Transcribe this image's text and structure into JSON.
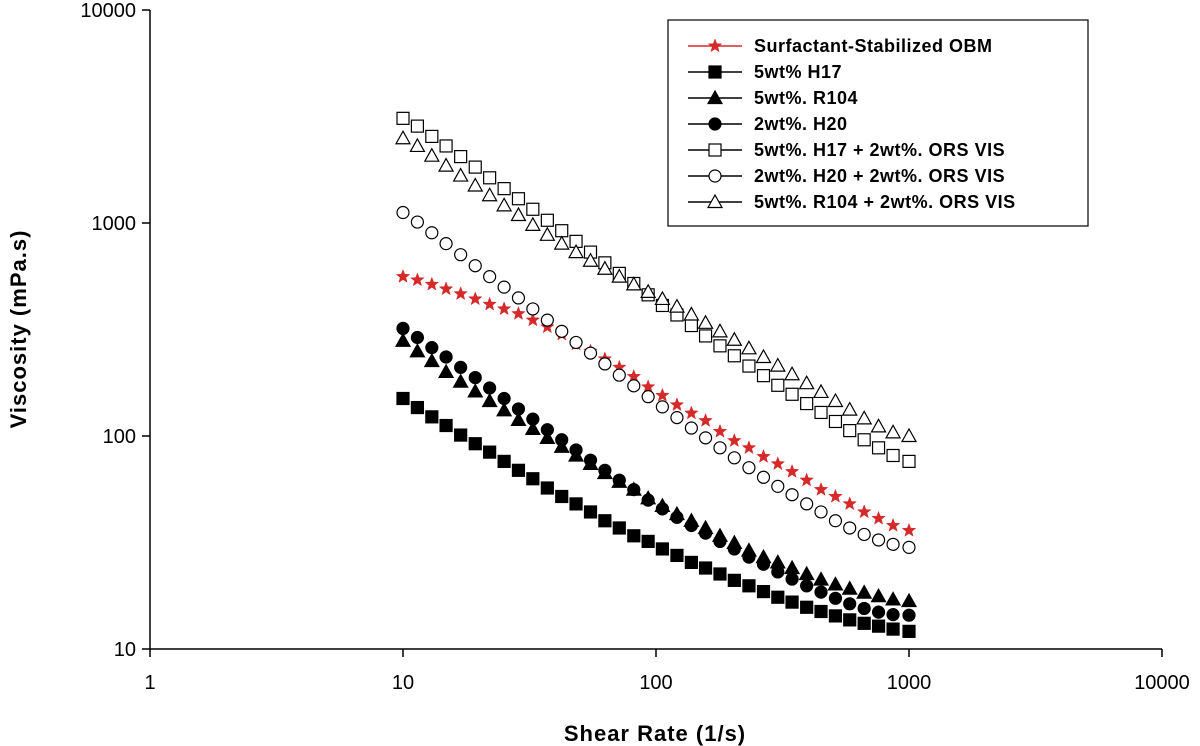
{
  "chart_data": {
    "type": "scatter",
    "xlabel": "Shear Rate (1/s)",
    "ylabel": "Viscosity (mPa.s)",
    "x_scale": "log",
    "y_scale": "log",
    "xlim": [
      1,
      10000
    ],
    "ylim": [
      10,
      10000
    ],
    "x_ticks": [
      1,
      10,
      100,
      1000,
      10000
    ],
    "y_ticks": [
      10,
      100,
      1000,
      10000
    ],
    "x_tick_labels": [
      "1",
      "10",
      "100",
      "1000",
      "10000"
    ],
    "y_tick_labels": [
      "10",
      "100",
      "1000",
      "10000"
    ],
    "grid": false,
    "legend_position": "top-right",
    "series": [
      {
        "name": "Surfactant-Stabilized OBM",
        "marker": "star",
        "color": "#d42a2a",
        "x": [
          10,
          11.4,
          13,
          14.8,
          16.9,
          19.3,
          22,
          25.1,
          28.6,
          32.6,
          37.2,
          42.4,
          48.3,
          55.1,
          62.8,
          71.6,
          81.7,
          93.1,
          106,
          121,
          138,
          157,
          179,
          204,
          233,
          266,
          303,
          345,
          394,
          449,
          512,
          583,
          665,
          758,
          865,
          1000
        ],
        "y": [
          560,
          540,
          515,
          490,
          465,
          440,
          415,
          395,
          375,
          350,
          325,
          300,
          270,
          250,
          230,
          210,
          190,
          170,
          155,
          140,
          128,
          118,
          105,
          95,
          88,
          80,
          74,
          68,
          62,
          56,
          52,
          48,
          44,
          41,
          38,
          36
        ]
      },
      {
        "name": "5wt% H17",
        "marker": "square-filled",
        "color": "#000000",
        "x": [
          10,
          11.4,
          13,
          14.8,
          16.9,
          19.3,
          22,
          25.1,
          28.6,
          32.6,
          37.2,
          42.4,
          48.3,
          55.1,
          62.8,
          71.6,
          81.7,
          93.1,
          106,
          121,
          138,
          157,
          179,
          204,
          233,
          266,
          303,
          345,
          394,
          449,
          512,
          583,
          665,
          758,
          865,
          1000
        ],
        "y": [
          150,
          136,
          123,
          112,
          101,
          92,
          84,
          76,
          69,
          63,
          57,
          52,
          48,
          44,
          40,
          37,
          34,
          32,
          29.5,
          27.5,
          25.5,
          24,
          22.5,
          21,
          19.8,
          18.6,
          17.5,
          16.6,
          15.7,
          15,
          14.3,
          13.7,
          13.2,
          12.8,
          12.4,
          12.1
        ]
      },
      {
        "name": "5wt%. R104",
        "marker": "triangle-filled",
        "color": "#000000",
        "x": [
          10,
          11.4,
          13,
          14.8,
          16.9,
          19.3,
          22,
          25.1,
          28.6,
          32.6,
          37.2,
          42.4,
          48.3,
          55.1,
          62.8,
          71.6,
          81.7,
          93.1,
          106,
          121,
          138,
          157,
          179,
          204,
          233,
          266,
          303,
          345,
          394,
          449,
          512,
          583,
          665,
          758,
          865,
          1000
        ],
        "y": [
          280,
          250,
          225,
          200,
          180,
          162,
          146,
          132,
          119,
          108,
          98,
          89,
          81,
          74,
          67,
          61,
          56,
          51,
          47,
          43,
          40,
          37,
          34,
          31.5,
          29,
          27,
          25.5,
          24,
          22.5,
          21.2,
          20.1,
          19.2,
          18.4,
          17.7,
          17.1,
          16.8
        ]
      },
      {
        "name": "2wt%. H20",
        "marker": "circle-filled",
        "color": "#000000",
        "x": [
          10,
          11.4,
          13,
          14.8,
          16.9,
          19.3,
          22,
          25.1,
          28.6,
          32.6,
          37.2,
          42.4,
          48.3,
          55.1,
          62.8,
          71.6,
          81.7,
          93.1,
          106,
          121,
          138,
          157,
          179,
          204,
          233,
          266,
          303,
          345,
          394,
          449,
          512,
          583,
          665,
          758,
          865,
          1000
        ],
        "y": [
          320,
          290,
          260,
          235,
          210,
          188,
          168,
          150,
          134,
          120,
          107,
          96,
          86,
          77,
          69,
          62,
          56,
          50,
          45.5,
          41.5,
          38,
          35,
          32,
          29.5,
          27,
          25,
          23,
          21.3,
          19.8,
          18.5,
          17.3,
          16.3,
          15.5,
          14.9,
          14.5,
          14.4
        ]
      },
      {
        "name": "5wt%. H17 + 2wt%. ORS VIS",
        "marker": "square-open",
        "color": "#000000",
        "x": [
          10,
          11.4,
          13,
          14.8,
          16.9,
          19.3,
          22,
          25.1,
          28.6,
          32.6,
          37.2,
          42.4,
          48.3,
          55.1,
          62.8,
          71.6,
          81.7,
          93.1,
          106,
          121,
          138,
          157,
          179,
          204,
          233,
          266,
          303,
          345,
          394,
          449,
          512,
          583,
          665,
          758,
          865,
          1000
        ],
        "y": [
          3100,
          2850,
          2550,
          2300,
          2050,
          1830,
          1630,
          1450,
          1300,
          1160,
          1030,
          920,
          820,
          730,
          650,
          580,
          520,
          460,
          410,
          370,
          330,
          295,
          265,
          238,
          213,
          192,
          173,
          157,
          142,
          129,
          117,
          106,
          96,
          88,
          81,
          76
        ]
      },
      {
        "name": "2wt%. H20 + 2wt%. ORS VIS",
        "marker": "circle-open",
        "color": "#000000",
        "x": [
          10,
          11.4,
          13,
          14.8,
          16.9,
          19.3,
          22,
          25.1,
          28.6,
          32.6,
          37.2,
          42.4,
          48.3,
          55.1,
          62.8,
          71.6,
          81.7,
          93.1,
          106,
          121,
          138,
          157,
          179,
          204,
          233,
          266,
          303,
          345,
          394,
          449,
          512,
          583,
          665,
          758,
          865,
          1000
        ],
        "y": [
          1120,
          1010,
          900,
          800,
          710,
          630,
          560,
          500,
          445,
          395,
          350,
          310,
          275,
          245,
          218,
          193,
          172,
          153,
          137,
          122,
          109,
          98,
          88,
          79,
          71,
          64,
          58,
          53,
          48,
          44,
          40,
          37,
          34.5,
          32.5,
          31,
          30
        ]
      },
      {
        "name": "5wt%. R104 + 2wt%. ORS VIS",
        "marker": "triangle-open",
        "color": "#000000",
        "x": [
          10,
          11.4,
          13,
          14.8,
          16.9,
          19.3,
          22,
          25.1,
          28.6,
          32.6,
          37.2,
          42.4,
          48.3,
          55.1,
          62.8,
          71.6,
          81.7,
          93.1,
          106,
          121,
          138,
          157,
          179,
          204,
          233,
          266,
          303,
          345,
          394,
          449,
          512,
          583,
          665,
          758,
          865,
          1000
        ],
        "y": [
          2500,
          2300,
          2070,
          1860,
          1670,
          1500,
          1350,
          1210,
          1090,
          980,
          880,
          800,
          730,
          665,
          610,
          560,
          515,
          475,
          440,
          405,
          372,
          340,
          310,
          283,
          258,
          235,
          214,
          195,
          177,
          161,
          146,
          133,
          121,
          111,
          104,
          100
        ]
      }
    ]
  }
}
